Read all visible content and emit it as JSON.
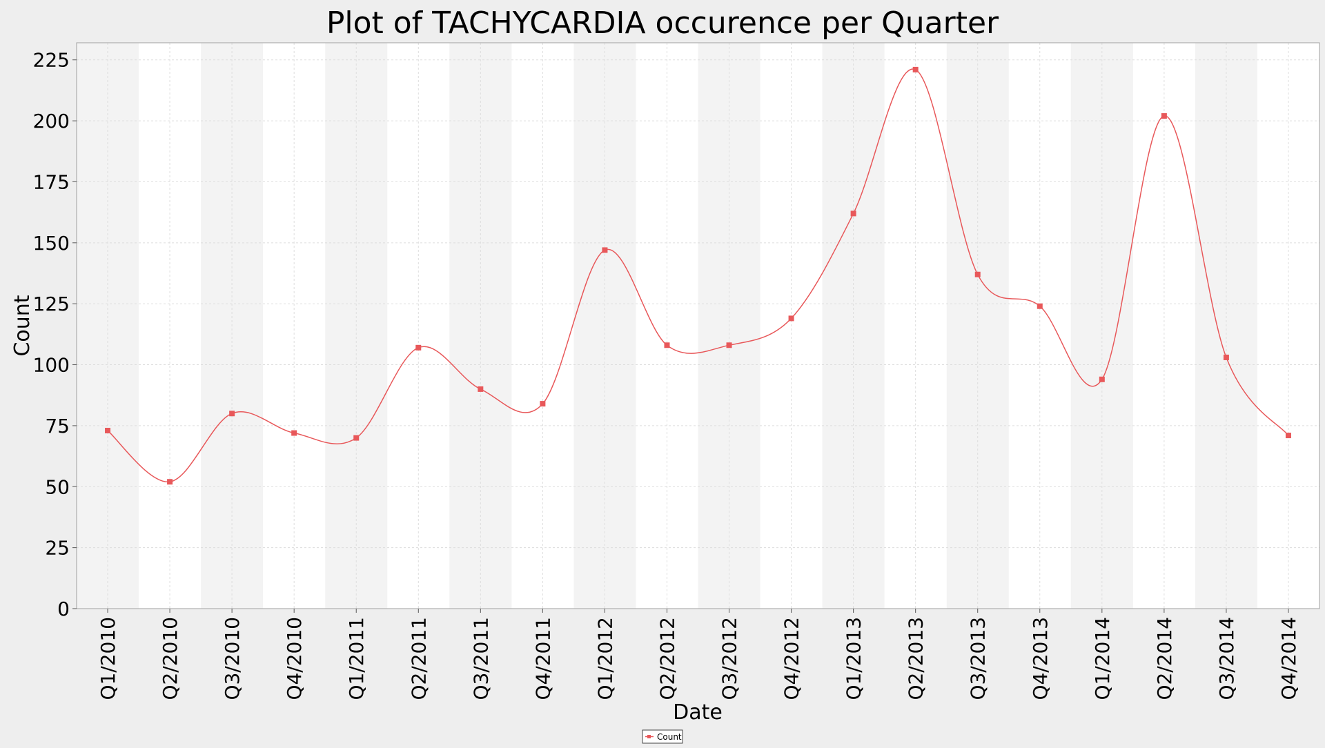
{
  "chart_data": {
    "type": "line",
    "title": "Plot of TACHYCARDIA occurence per Quarter",
    "xlabel": "Date",
    "ylabel": "Count",
    "ylim": [
      0,
      232
    ],
    "yticks": [
      0,
      25,
      50,
      75,
      100,
      125,
      150,
      175,
      200,
      225
    ],
    "ytick_labels": [
      "0",
      "25",
      "50",
      "75",
      "100",
      "125",
      "150",
      "175",
      "200",
      "225"
    ],
    "categories": [
      "Q1/2010",
      "Q2/2010",
      "Q3/2010",
      "Q4/2010",
      "Q1/2011",
      "Q2/2011",
      "Q3/2011",
      "Q4/2011",
      "Q1/2012",
      "Q2/2012",
      "Q3/2012",
      "Q4/2012",
      "Q1/2013",
      "Q2/2013",
      "Q3/2013",
      "Q4/2013",
      "Q1/2014",
      "Q2/2014",
      "Q3/2014",
      "Q4/2014"
    ],
    "series": [
      {
        "name": "Count",
        "color": "#e8585a",
        "values": [
          73,
          52,
          80,
          72,
          70,
          107,
          90,
          84,
          147,
          108,
          108,
          119,
          162,
          221,
          137,
          124,
          94,
          202,
          103,
          71
        ]
      }
    ],
    "grid": true,
    "alternating_bands": true,
    "band_color": "#f3f3f3",
    "legend_position": "bottom-center"
  }
}
